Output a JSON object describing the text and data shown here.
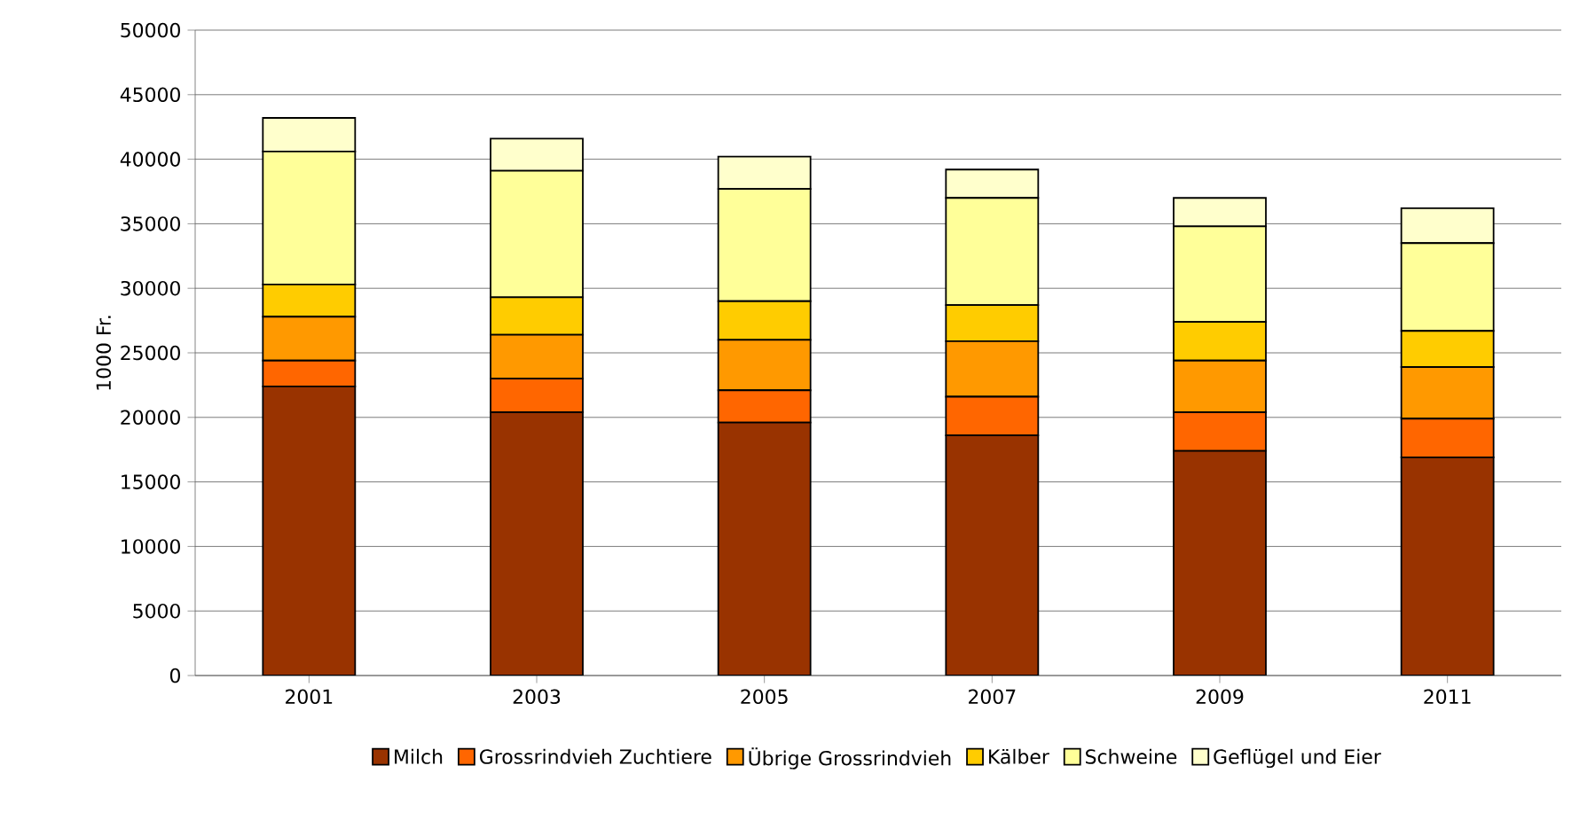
{
  "chart_data": {
    "type": "bar",
    "stacked": true,
    "ylabel": "1000 Fr.",
    "categories": [
      "2001",
      "2003",
      "2005",
      "2007",
      "2009",
      "2011"
    ],
    "series": [
      {
        "name": "Milch",
        "color": "#993300",
        "values": [
          22400,
          20400,
          19600,
          18600,
          17400,
          16900
        ]
      },
      {
        "name": "Grossrindvieh Zuchtiere",
        "color": "#ff6600",
        "values": [
          2000,
          2600,
          2500,
          3000,
          3000,
          3000
        ]
      },
      {
        "name": "Übrige Grossrindvieh",
        "color": "#ff9900",
        "values": [
          3400,
          3400,
          3900,
          4300,
          4000,
          4000
        ]
      },
      {
        "name": "Kälber",
        "color": "#ffcc00",
        "values": [
          2500,
          2900,
          3000,
          2800,
          3000,
          2800
        ]
      },
      {
        "name": "Schweine",
        "color": "#ffff99",
        "values": [
          10300,
          9800,
          8700,
          8300,
          7400,
          6800
        ]
      },
      {
        "name": "Geflügel und Eier",
        "color": "#ffffcc",
        "values": [
          2600,
          2500,
          2500,
          2200,
          2200,
          2700
        ]
      }
    ],
    "ylim": [
      0,
      50000
    ],
    "yticks": [
      0,
      5000,
      10000,
      15000,
      20000,
      25000,
      30000,
      35000,
      40000,
      45000,
      50000
    ],
    "grid": "y",
    "legend": "bottom"
  }
}
